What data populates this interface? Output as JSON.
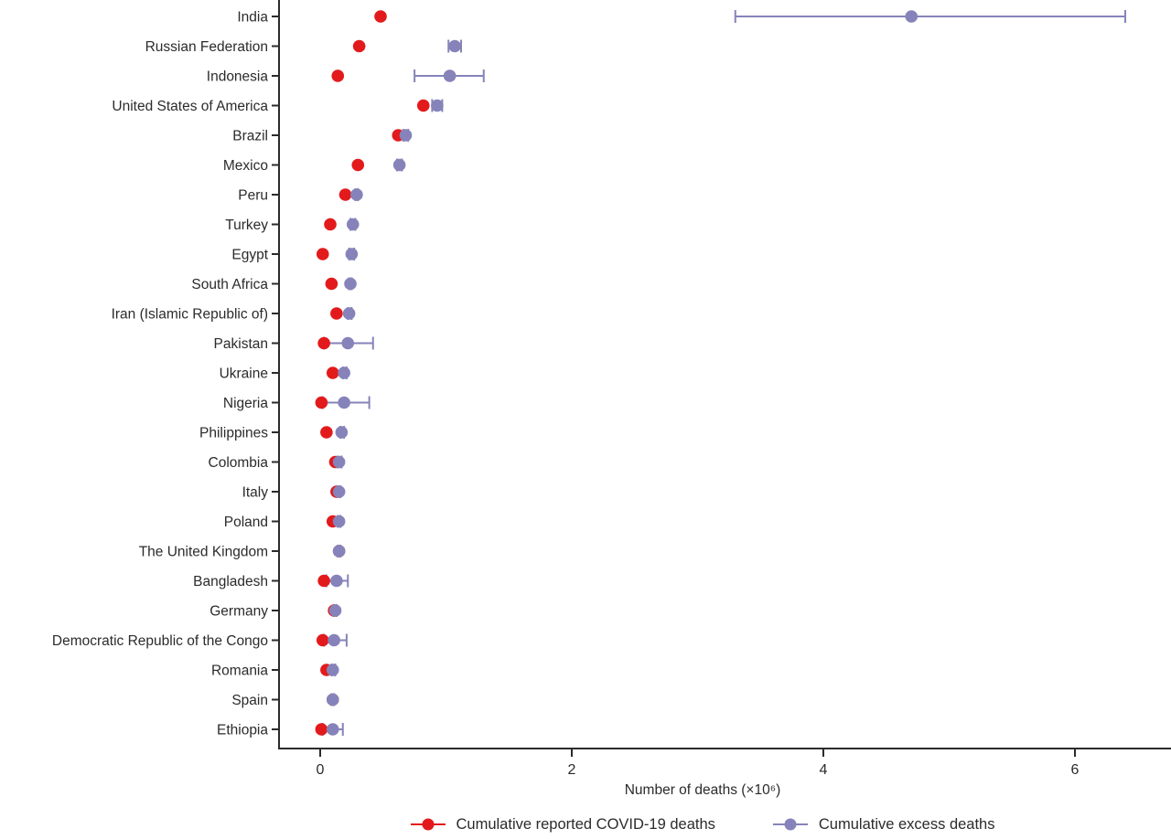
{
  "chart_data": {
    "type": "scatter",
    "subtype": "dot-plot-with-error-bars",
    "orientation": "horizontal",
    "title": "",
    "xlabel": "Number of deaths (×10⁶)",
    "ylabel": "",
    "x_ticks": [
      0,
      2,
      4,
      6
    ],
    "xlim": [
      -0.33,
      6.76
    ],
    "unit": "millions of deaths",
    "grid": false,
    "legend_position": "bottom",
    "categories": [
      "India",
      "Russian Federation",
      "Indonesia",
      "United States of America",
      "Brazil",
      "Mexico",
      "Peru",
      "Turkey",
      "Egypt",
      "South Africa",
      "Iran (Islamic Republic of)",
      "Pakistan",
      "Ukraine",
      "Nigeria",
      "Philippines",
      "Colombia",
      "Italy",
      "Poland",
      "The United Kingdom",
      "Bangladesh",
      "Germany",
      "Democratic Republic of the Congo",
      "Romania",
      "Spain",
      "Ethiopia"
    ],
    "series": [
      {
        "name": "Cumulative reported COVID-19 deaths",
        "color": "#e31a1c",
        "values": [
          0.48,
          0.31,
          0.14,
          0.82,
          0.62,
          0.3,
          0.2,
          0.08,
          0.02,
          0.09,
          0.13,
          0.03,
          0.1,
          0.01,
          0.05,
          0.12,
          0.13,
          0.1,
          0.15,
          0.03,
          0.11,
          0.02,
          0.05,
          0.1,
          0.01
        ]
      },
      {
        "name": "Cumulative excess deaths",
        "color": "#8683ba",
        "values": [
          4.7,
          1.07,
          1.03,
          0.93,
          0.68,
          0.63,
          0.29,
          0.26,
          0.25,
          0.24,
          0.23,
          0.22,
          0.19,
          0.19,
          0.17,
          0.15,
          0.15,
          0.15,
          0.15,
          0.13,
          0.12,
          0.11,
          0.1,
          0.1,
          0.1
        ],
        "ci_low": [
          3.3,
          1.02,
          0.75,
          0.89,
          0.66,
          0.61,
          0.28,
          0.24,
          0.23,
          0.23,
          0.22,
          0.03,
          0.18,
          0.02,
          0.16,
          0.14,
          0.14,
          0.14,
          0.14,
          0.05,
          0.11,
          0.03,
          0.09,
          0.09,
          0.02
        ],
        "ci_high": [
          6.4,
          1.12,
          1.3,
          0.97,
          0.7,
          0.65,
          0.3,
          0.28,
          0.27,
          0.25,
          0.25,
          0.42,
          0.21,
          0.39,
          0.19,
          0.17,
          0.16,
          0.16,
          0.16,
          0.22,
          0.13,
          0.21,
          0.12,
          0.11,
          0.18
        ]
      }
    ],
    "axis_color": "#2b2b2b"
  }
}
